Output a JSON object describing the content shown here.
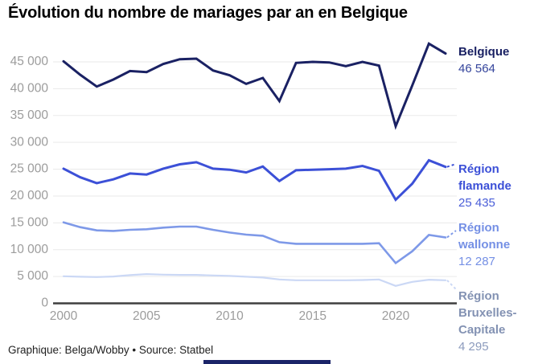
{
  "title": "Évolution du nombre de mariages par an en Belgique",
  "footer": "Graphique: Belga/Wobby • Source: Statbel",
  "colors": {
    "background": "#ffffff",
    "title": "#000000",
    "grid": "#eaeaea",
    "axis": "#3f3f3f",
    "tick_text": "#9c9c9c",
    "footer_text": "#222222",
    "bottom_bar": "#1b2468"
  },
  "chart_data": {
    "type": "line",
    "title": "Évolution du nombre de mariages par an en Belgique",
    "xlabel": "",
    "ylabel": "",
    "x_range": [
      2000,
      2023
    ],
    "ylim": [
      0,
      48500
    ],
    "grid": "horizontal",
    "legend_position": "right-of-lines",
    "x": [
      2000,
      2001,
      2002,
      2003,
      2004,
      2005,
      2006,
      2007,
      2008,
      2009,
      2010,
      2011,
      2012,
      2013,
      2014,
      2015,
      2016,
      2017,
      2018,
      2019,
      2020,
      2021,
      2022,
      2023
    ],
    "xticks": [
      {
        "value": 2000,
        "label": "2000"
      },
      {
        "value": 2005,
        "label": "2005"
      },
      {
        "value": 2010,
        "label": "2010"
      },
      {
        "value": 2015,
        "label": "2015"
      },
      {
        "value": 2020,
        "label": "2020"
      }
    ],
    "yticks": [
      {
        "value": 0,
        "label": "0"
      },
      {
        "value": 5000,
        "label": "5 000"
      },
      {
        "value": 10000,
        "label": "10 000"
      },
      {
        "value": 15000,
        "label": "15 000"
      },
      {
        "value": 20000,
        "label": "20 000"
      },
      {
        "value": 25000,
        "label": "25 000"
      },
      {
        "value": 30000,
        "label": "30 000"
      },
      {
        "value": 35000,
        "label": "35 000"
      },
      {
        "value": 40000,
        "label": "40 000"
      },
      {
        "value": 45000,
        "label": "45 000"
      }
    ],
    "series": [
      {
        "name": "Belgique",
        "value_label": "46 564",
        "final_value": 46564,
        "line_color": "#1a2163",
        "name_color": "#1a2163",
        "value_color": "#35459c",
        "values": [
          45100,
          42600,
          40400,
          41700,
          43300,
          43100,
          44600,
          45500,
          45600,
          43400,
          42500,
          40900,
          42000,
          37700,
          44800,
          45000,
          44900,
          44200,
          45000,
          44300,
          33000,
          40600,
          48400,
          46564
        ]
      },
      {
        "name": "Région flamande",
        "value_label": "25 435",
        "final_value": 25435,
        "line_color": "#3c50d7",
        "name_color": "#3c50d7",
        "value_color": "#4a5ed8",
        "values": [
          25100,
          23500,
          22400,
          23100,
          24200,
          24000,
          25100,
          25900,
          26300,
          25100,
          24900,
          24400,
          25500,
          22800,
          24800,
          24900,
          25000,
          25100,
          25600,
          24700,
          19300,
          22300,
          26650,
          25435
        ]
      },
      {
        "name": "Région wallonne",
        "value_label": "12 287",
        "final_value": 12287,
        "line_color": "#7e99e8",
        "name_color": "#7590e5",
        "value_color": "#7590e5",
        "values": [
          15100,
          14200,
          13600,
          13500,
          13700,
          13800,
          14100,
          14300,
          14300,
          13700,
          13200,
          12800,
          12600,
          11400,
          11100,
          11100,
          11100,
          11100,
          11100,
          11200,
          7500,
          9700,
          12750,
          12287
        ]
      },
      {
        "name": "Région Bruxelles-Capitale",
        "value_label": "4 295",
        "final_value": 4295,
        "line_color": "#cbd8f5",
        "name_color": "#8392b3",
        "value_color": "#8c9bbd",
        "values": [
          5050,
          4950,
          4900,
          5000,
          5250,
          5450,
          5350,
          5300,
          5300,
          5200,
          5100,
          4950,
          4800,
          4450,
          4300,
          4300,
          4300,
          4300,
          4350,
          4450,
          3250,
          4000,
          4400,
          4295
        ]
      }
    ]
  }
}
